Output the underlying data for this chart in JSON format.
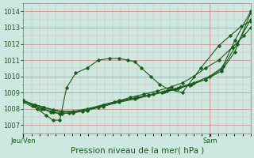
{
  "bg_color": "#cde8e0",
  "grid_color_major": "#d88080",
  "grid_color_minor": "#e8a8a8",
  "line_color": "#1a5c1a",
  "marker_color": "#1a5c1a",
  "title": "Pression niveau de la mer( hPa )",
  "xlabel_left": "Jeu/Ven",
  "xlabel_right": "Sam",
  "ylim": [
    1006.5,
    1014.5
  ],
  "yticks": [
    1007,
    1008,
    1009,
    1010,
    1011,
    1012,
    1013,
    1014
  ],
  "title_fontsize": 7.5,
  "tick_fontsize": 6,
  "line1_x": [
    0.0,
    0.06,
    0.1,
    0.13,
    0.16,
    0.19,
    0.23,
    0.28,
    0.33,
    0.38,
    0.42,
    0.46,
    0.49,
    0.52,
    0.56,
    0.6,
    0.64,
    0.7,
    0.78,
    0.86,
    0.91,
    0.96,
    1.0
  ],
  "line1_y": [
    1008.4,
    1008.0,
    1007.6,
    1007.3,
    1007.3,
    1009.3,
    1010.2,
    1010.5,
    1011.0,
    1011.1,
    1011.1,
    1011.0,
    1010.9,
    1010.5,
    1010.0,
    1009.5,
    1009.2,
    1009.0,
    1010.5,
    1011.9,
    1012.5,
    1013.1,
    1013.4
  ],
  "line2_x": [
    0.0,
    0.04,
    0.08,
    0.12,
    0.16,
    0.2,
    0.26,
    0.33,
    0.4,
    0.47,
    0.53,
    0.59,
    0.65,
    0.7,
    0.75,
    0.8,
    0.86,
    0.92,
    0.97,
    1.0
  ],
  "line2_y": [
    1008.5,
    1008.2,
    1008.0,
    1007.8,
    1007.7,
    1007.75,
    1007.85,
    1008.1,
    1008.4,
    1008.7,
    1008.9,
    1009.1,
    1009.35,
    1009.6,
    1010.0,
    1010.5,
    1011.0,
    1011.8,
    1012.5,
    1013.0
  ],
  "line3_x": [
    0.0,
    0.05,
    0.09,
    0.13,
    0.17,
    0.22,
    0.28,
    0.35,
    0.42,
    0.49,
    0.55,
    0.61,
    0.67,
    0.73,
    0.8,
    0.87,
    0.93,
    1.0
  ],
  "line3_y": [
    1008.5,
    1008.2,
    1008.0,
    1007.8,
    1007.7,
    1007.75,
    1007.9,
    1008.15,
    1008.4,
    1008.6,
    1008.8,
    1009.0,
    1009.2,
    1009.45,
    1009.8,
    1010.3,
    1011.5,
    1013.9
  ],
  "line4_x": [
    0.0,
    0.05,
    0.09,
    0.13,
    0.17,
    0.22,
    0.28,
    0.35,
    0.42,
    0.49,
    0.55,
    0.62,
    0.68,
    0.74,
    0.8,
    0.87,
    0.93,
    1.0
  ],
  "line4_y": [
    1008.5,
    1008.25,
    1008.1,
    1007.9,
    1007.8,
    1007.8,
    1007.95,
    1008.2,
    1008.45,
    1008.65,
    1008.85,
    1009.05,
    1009.25,
    1009.5,
    1009.8,
    1010.4,
    1012.2,
    1014.0
  ],
  "line5_x": [
    0.0,
    0.05,
    0.09,
    0.13,
    0.17,
    0.22,
    0.28,
    0.35,
    0.42,
    0.5,
    0.57,
    0.63,
    0.69,
    0.75,
    0.82,
    0.88,
    0.94,
    1.0
  ],
  "line5_y": [
    1008.5,
    1008.25,
    1008.1,
    1007.95,
    1007.85,
    1007.85,
    1008.0,
    1008.25,
    1008.5,
    1008.7,
    1008.9,
    1009.1,
    1009.35,
    1009.6,
    1010.0,
    1010.6,
    1012.0,
    1013.5
  ]
}
